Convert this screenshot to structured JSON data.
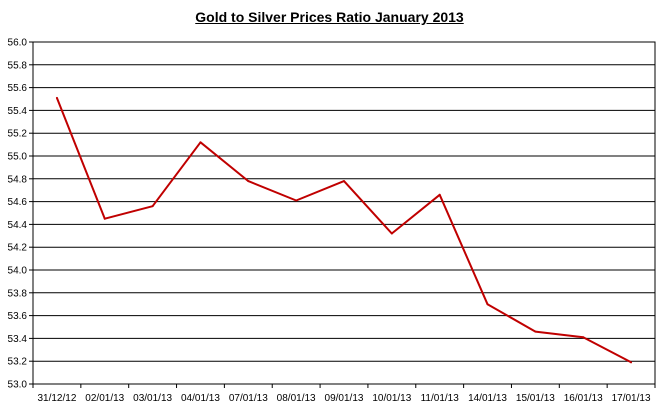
{
  "chart_data": {
    "type": "line",
    "title": "Gold to Silver Prices Ratio January 2013",
    "xlabel": "",
    "ylabel": "",
    "categories": [
      "31/12/12",
      "02/01/13",
      "03/01/13",
      "04/01/13",
      "07/01/13",
      "08/01/13",
      "09/01/13",
      "10/01/13",
      "11/01/13",
      "14/01/13",
      "15/01/13",
      "16/01/13",
      "17/01/13"
    ],
    "values": [
      55.51,
      54.45,
      54.56,
      55.12,
      54.78,
      54.61,
      54.78,
      54.32,
      54.66,
      53.7,
      53.46,
      53.41,
      53.19
    ],
    "ylim": [
      53.0,
      56.0
    ],
    "yticks": [
      "53.0",
      "53.2",
      "53.4",
      "53.6",
      "53.8",
      "54.0",
      "54.2",
      "54.4",
      "54.6",
      "54.8",
      "55.0",
      "55.2",
      "55.4",
      "55.6",
      "55.8",
      "56.0"
    ],
    "grid": true,
    "legend": "none",
    "line_color": "#c00000"
  }
}
